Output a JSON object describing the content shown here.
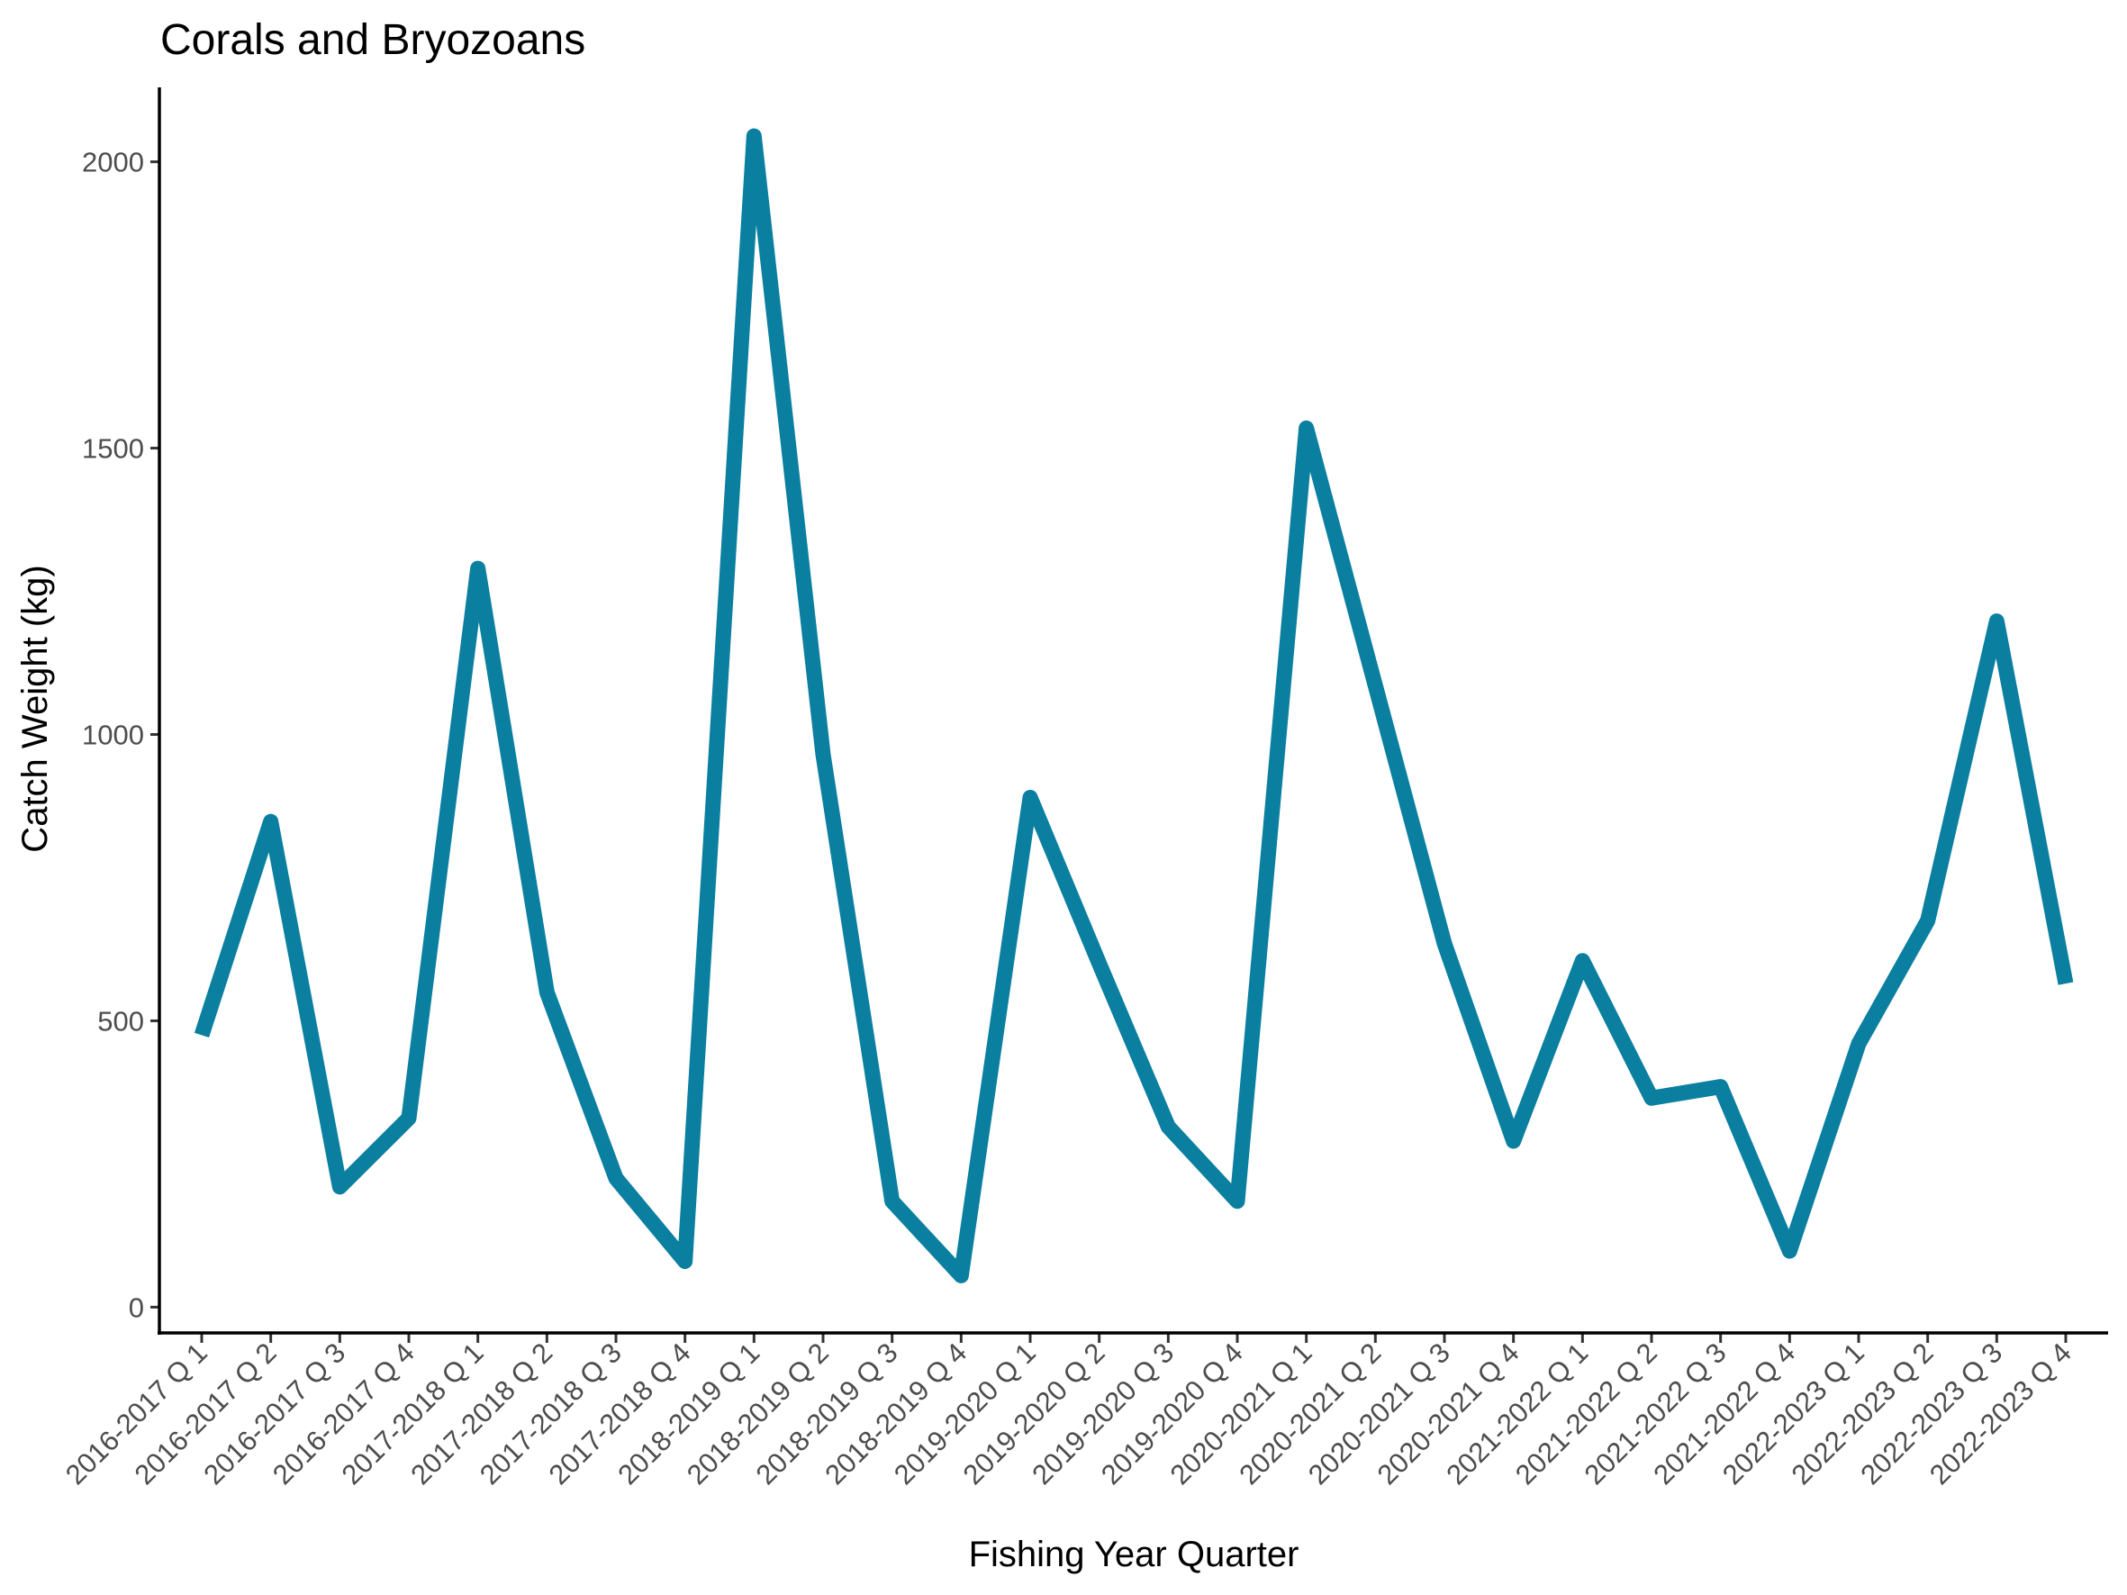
{
  "chart_data": {
    "type": "line",
    "title": "Corals and Bryozoans",
    "xlabel": "Fishing Year Quarter",
    "ylabel": "Catch Weight (kg)",
    "ylim": [
      -45,
      2130
    ],
    "yticks": [
      0,
      500,
      1000,
      1500,
      2000
    ],
    "grid": false,
    "legend": "none",
    "color": "#0b7fa0",
    "categories": [
      "2016-2017 Q 1",
      "2016-2017 Q 2",
      "2016-2017 Q 3",
      "2016-2017 Q 4",
      "2017-2018 Q 1",
      "2017-2018 Q 2",
      "2017-2018 Q 3",
      "2017-2018 Q 4",
      "2018-2019 Q 1",
      "2018-2019 Q 2",
      "2018-2019 Q 3",
      "2018-2019 Q 4",
      "2019-2020 Q 1",
      "2019-2020 Q 2",
      "2019-2020 Q 3",
      "2019-2020 Q 4",
      "2020-2021 Q 1",
      "2020-2021 Q 2",
      "2020-2021 Q 3",
      "2020-2021 Q 4",
      "2021-2022 Q 1",
      "2021-2022 Q 2",
      "2021-2022 Q 3",
      "2021-2022 Q 4",
      "2022-2023 Q 1",
      "2022-2023 Q 2",
      "2022-2023 Q 3",
      "2022-2023 Q 4"
    ],
    "values": [
      475,
      848,
      210,
      330,
      1290,
      550,
      225,
      80,
      2045,
      965,
      185,
      55,
      890,
      600,
      315,
      185,
      1535,
      1085,
      635,
      290,
      605,
      365,
      385,
      98,
      460,
      675,
      1198,
      565
    ]
  }
}
